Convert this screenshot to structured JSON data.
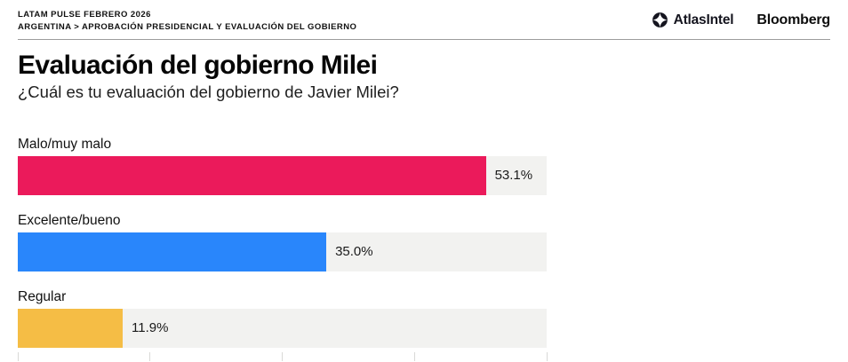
{
  "header": {
    "kicker_line1": "LATAM PULSE FEBRERO 2026",
    "kicker_line2": "ARGENTINA > APROBACIÓN PRESIDENCIAL Y EVALUACIÓN DEL GOBIERNO",
    "brand_primary": "AtlasIntel",
    "brand_secondary": "Bloomberg"
  },
  "page": {
    "title": "Evaluación del gobierno Milei",
    "subtitle": "¿Cuál es tu evaluación del gobierno de Javier Milei?"
  },
  "chart_data": {
    "type": "bar",
    "orientation": "horizontal",
    "title": "Evaluación del gobierno Milei",
    "question": "¿Cuál es tu evaluación del gobierno de Javier Milei?",
    "categories": [
      "Malo/muy malo",
      "Excelente/bueno",
      "Regular"
    ],
    "values": [
      53.1,
      35.0,
      11.9
    ],
    "value_labels": [
      "53.1%",
      "35.0%",
      "11.9%"
    ],
    "unit": "%",
    "xlim": [
      0,
      60
    ],
    "axis_ticks": [
      0,
      15,
      30,
      45,
      60
    ],
    "bar_colors": [
      "#EB1A5B",
      "#2986FB",
      "#F5BD45"
    ],
    "track_color": "#F2F2F0",
    "grid": false,
    "legend": false
  }
}
